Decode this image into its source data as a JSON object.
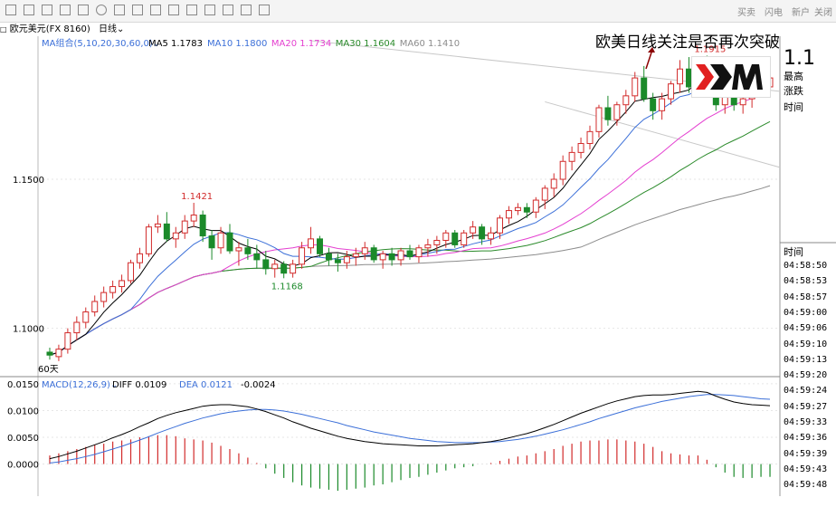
{
  "toolbar": {
    "right_items": [
      "买卖",
      "闪电",
      "新户",
      "关闭"
    ]
  },
  "symbol_bar": {
    "symbol": "欧元美元(FX 8160)",
    "period": "日线"
  },
  "headline": "欧美日线关注是否再次突破",
  "big_price": "1.1",
  "sidebar": {
    "high_label": "最高",
    "change_label": "涨跌",
    "time_label_1": "时间",
    "time_label_2": "时间",
    "times": [
      "04:58:50",
      "04:58:53",
      "04:58:57",
      "04:59:00",
      "04:59:06",
      "04:59:10",
      "04:59:13",
      "04:59:20",
      "04:59:24",
      "04:59:27",
      "04:59:33",
      "04:59:36",
      "04:59:39",
      "04:59:43",
      "04:59:48"
    ]
  },
  "colors": {
    "up": "#d22b2b",
    "down": "#1b8a2a",
    "ma5": "#000000",
    "ma10": "#3b6fd8",
    "ma20": "#e43fd0",
    "ma30": "#2a8a2a",
    "ma60": "#8c8c8c",
    "diff": "#000000",
    "dea": "#3b6fd8"
  },
  "chart_data": [
    {
      "type": "candlestick",
      "title": "",
      "indicator_label": "MA组合(5,10,20,30,60,0)",
      "ma_legend": [
        {
          "name": "MA5",
          "value": "1.1783"
        },
        {
          "name": "MA10",
          "value": "1.1800"
        },
        {
          "name": "MA20",
          "value": "1.1734"
        },
        {
          "name": "MA30",
          "value": "1.1604"
        },
        {
          "name": "MA60",
          "value": "1.1410"
        }
      ],
      "y_ticks": [
        1.15,
        1.1
      ],
      "y_tick_labels": [
        "1.1500",
        "1.1000"
      ],
      "ylim": [
        1.085,
        1.198
      ],
      "annotations": [
        {
          "text": "1.1421",
          "index": 16,
          "value": 1.1421,
          "kind": "high"
        },
        {
          "text": "1.1168",
          "index": 26,
          "value": 1.1168,
          "kind": "low"
        },
        {
          "text": "1.1915",
          "index": 73,
          "value": 1.1915,
          "kind": "high"
        }
      ],
      "bottom_label": "60天",
      "candles": [
        {
          "o": 1.092,
          "h": 1.0935,
          "l": 1.0895,
          "c": 1.091
        },
        {
          "o": 1.0905,
          "h": 1.0945,
          "l": 1.089,
          "c": 1.093
        },
        {
          "o": 1.093,
          "h": 1.1,
          "l": 1.0915,
          "c": 1.0985
        },
        {
          "o": 1.0985,
          "h": 1.104,
          "l": 1.096,
          "c": 1.102
        },
        {
          "o": 1.102,
          "h": 1.107,
          "l": 1.1,
          "c": 1.1055
        },
        {
          "o": 1.1055,
          "h": 1.111,
          "l": 1.104,
          "c": 1.109
        },
        {
          "o": 1.109,
          "h": 1.114,
          "l": 1.107,
          "c": 1.112
        },
        {
          "o": 1.112,
          "h": 1.116,
          "l": 1.11,
          "c": 1.114
        },
        {
          "o": 1.114,
          "h": 1.118,
          "l": 1.112,
          "c": 1.116
        },
        {
          "o": 1.116,
          "h": 1.123,
          "l": 1.115,
          "c": 1.122
        },
        {
          "o": 1.122,
          "h": 1.127,
          "l": 1.12,
          "c": 1.125
        },
        {
          "o": 1.125,
          "h": 1.135,
          "l": 1.124,
          "c": 1.134
        },
        {
          "o": 1.134,
          "h": 1.138,
          "l": 1.132,
          "c": 1.135
        },
        {
          "o": 1.135,
          "h": 1.139,
          "l": 1.129,
          "c": 1.13
        },
        {
          "o": 1.13,
          "h": 1.134,
          "l": 1.127,
          "c": 1.132
        },
        {
          "o": 1.132,
          "h": 1.138,
          "l": 1.13,
          "c": 1.136
        },
        {
          "o": 1.136,
          "h": 1.1421,
          "l": 1.134,
          "c": 1.138
        },
        {
          "o": 1.138,
          "h": 1.1395,
          "l": 1.129,
          "c": 1.131
        },
        {
          "o": 1.131,
          "h": 1.133,
          "l": 1.123,
          "c": 1.127
        },
        {
          "o": 1.127,
          "h": 1.134,
          "l": 1.125,
          "c": 1.132
        },
        {
          "o": 1.132,
          "h": 1.135,
          "l": 1.125,
          "c": 1.126
        },
        {
          "o": 1.126,
          "h": 1.129,
          "l": 1.121,
          "c": 1.127
        },
        {
          "o": 1.127,
          "h": 1.13,
          "l": 1.123,
          "c": 1.125
        },
        {
          "o": 1.125,
          "h": 1.128,
          "l": 1.12,
          "c": 1.123
        },
        {
          "o": 1.123,
          "h": 1.126,
          "l": 1.118,
          "c": 1.12
        },
        {
          "o": 1.12,
          "h": 1.123,
          "l": 1.117,
          "c": 1.1215
        },
        {
          "o": 1.1215,
          "h": 1.1225,
          "l": 1.1168,
          "c": 1.1185
        },
        {
          "o": 1.1185,
          "h": 1.123,
          "l": 1.117,
          "c": 1.1215
        },
        {
          "o": 1.1215,
          "h": 1.129,
          "l": 1.12,
          "c": 1.127
        },
        {
          "o": 1.127,
          "h": 1.134,
          "l": 1.125,
          "c": 1.13
        },
        {
          "o": 1.13,
          "h": 1.131,
          "l": 1.124,
          "c": 1.125
        },
        {
          "o": 1.125,
          "h": 1.127,
          "l": 1.121,
          "c": 1.123
        },
        {
          "o": 1.123,
          "h": 1.125,
          "l": 1.119,
          "c": 1.122
        },
        {
          "o": 1.122,
          "h": 1.126,
          "l": 1.12,
          "c": 1.124
        },
        {
          "o": 1.124,
          "h": 1.127,
          "l": 1.121,
          "c": 1.125
        },
        {
          "o": 1.125,
          "h": 1.129,
          "l": 1.123,
          "c": 1.127
        },
        {
          "o": 1.127,
          "h": 1.128,
          "l": 1.122,
          "c": 1.123
        },
        {
          "o": 1.123,
          "h": 1.126,
          "l": 1.12,
          "c": 1.125
        },
        {
          "o": 1.125,
          "h": 1.127,
          "l": 1.121,
          "c": 1.123
        },
        {
          "o": 1.123,
          "h": 1.127,
          "l": 1.121,
          "c": 1.126
        },
        {
          "o": 1.126,
          "h": 1.128,
          "l": 1.123,
          "c": 1.124
        },
        {
          "o": 1.124,
          "h": 1.128,
          "l": 1.122,
          "c": 1.127
        },
        {
          "o": 1.127,
          "h": 1.13,
          "l": 1.124,
          "c": 1.128
        },
        {
          "o": 1.128,
          "h": 1.131,
          "l": 1.125,
          "c": 1.1295
        },
        {
          "o": 1.1295,
          "h": 1.133,
          "l": 1.127,
          "c": 1.132
        },
        {
          "o": 1.132,
          "h": 1.133,
          "l": 1.127,
          "c": 1.128
        },
        {
          "o": 1.128,
          "h": 1.133,
          "l": 1.127,
          "c": 1.132
        },
        {
          "o": 1.132,
          "h": 1.136,
          "l": 1.13,
          "c": 1.134
        },
        {
          "o": 1.134,
          "h": 1.135,
          "l": 1.128,
          "c": 1.13
        },
        {
          "o": 1.13,
          "h": 1.134,
          "l": 1.128,
          "c": 1.132
        },
        {
          "o": 1.132,
          "h": 1.138,
          "l": 1.13,
          "c": 1.137
        },
        {
          "o": 1.137,
          "h": 1.141,
          "l": 1.135,
          "c": 1.1395
        },
        {
          "o": 1.1395,
          "h": 1.142,
          "l": 1.138,
          "c": 1.1405
        },
        {
          "o": 1.1405,
          "h": 1.142,
          "l": 1.137,
          "c": 1.139
        },
        {
          "o": 1.139,
          "h": 1.144,
          "l": 1.137,
          "c": 1.143
        },
        {
          "o": 1.143,
          "h": 1.148,
          "l": 1.14,
          "c": 1.147
        },
        {
          "o": 1.147,
          "h": 1.152,
          "l": 1.144,
          "c": 1.15
        },
        {
          "o": 1.15,
          "h": 1.158,
          "l": 1.148,
          "c": 1.156
        },
        {
          "o": 1.156,
          "h": 1.161,
          "l": 1.153,
          "c": 1.159
        },
        {
          "o": 1.159,
          "h": 1.164,
          "l": 1.157,
          "c": 1.162
        },
        {
          "o": 1.162,
          "h": 1.168,
          "l": 1.16,
          "c": 1.166
        },
        {
          "o": 1.166,
          "h": 1.175,
          "l": 1.164,
          "c": 1.174
        },
        {
          "o": 1.174,
          "h": 1.178,
          "l": 1.168,
          "c": 1.17
        },
        {
          "o": 1.17,
          "h": 1.176,
          "l": 1.168,
          "c": 1.175
        },
        {
          "o": 1.175,
          "h": 1.18,
          "l": 1.172,
          "c": 1.178
        },
        {
          "o": 1.178,
          "h": 1.186,
          "l": 1.176,
          "c": 1.184
        },
        {
          "o": 1.184,
          "h": 1.188,
          "l": 1.176,
          "c": 1.177
        },
        {
          "o": 1.177,
          "h": 1.179,
          "l": 1.17,
          "c": 1.173
        },
        {
          "o": 1.173,
          "h": 1.179,
          "l": 1.17,
          "c": 1.177
        },
        {
          "o": 1.177,
          "h": 1.183,
          "l": 1.175,
          "c": 1.182
        },
        {
          "o": 1.182,
          "h": 1.19,
          "l": 1.179,
          "c": 1.187
        },
        {
          "o": 1.187,
          "h": 1.191,
          "l": 1.179,
          "c": 1.181
        },
        {
          "o": 1.181,
          "h": 1.188,
          "l": 1.179,
          "c": 1.186
        },
        {
          "o": 1.186,
          "h": 1.1915,
          "l": 1.18,
          "c": 1.182
        },
        {
          "o": 1.182,
          "h": 1.184,
          "l": 1.173,
          "c": 1.175
        },
        {
          "o": 1.175,
          "h": 1.183,
          "l": 1.172,
          "c": 1.181
        },
        {
          "o": 1.181,
          "h": 1.182,
          "l": 1.173,
          "c": 1.175
        },
        {
          "o": 1.175,
          "h": 1.179,
          "l": 1.172,
          "c": 1.177
        },
        {
          "o": 1.177,
          "h": 1.181,
          "l": 1.174,
          "c": 1.18
        },
        {
          "o": 1.18,
          "h": 1.184,
          "l": 1.178,
          "c": 1.181
        },
        {
          "o": 1.181,
          "h": 1.185,
          "l": 1.179,
          "c": 1.184
        }
      ]
    },
    {
      "type": "line",
      "title": "",
      "indicator_label": "MACD(12,26,9)",
      "legend": [
        {
          "name": "DIFF",
          "value": "0.0109"
        },
        {
          "name": "DEA",
          "value": "0.0121"
        },
        {
          "name": "",
          "value": "-0.0024"
        }
      ],
      "y_ticks": [
        0.015,
        0.01,
        0.005,
        0.0
      ],
      "y_tick_labels": [
        "0.0150",
        "0.0100",
        "0.0050",
        "0.0000"
      ],
      "ylim": [
        -0.006,
        0.016
      ],
      "diff": [
        0.001,
        0.0014,
        0.0019,
        0.0024,
        0.003,
        0.0036,
        0.0042,
        0.0049,
        0.0055,
        0.0062,
        0.007,
        0.0077,
        0.0085,
        0.0091,
        0.0096,
        0.01,
        0.0104,
        0.0108,
        0.011,
        0.0111,
        0.0111,
        0.0109,
        0.0107,
        0.0103,
        0.0098,
        0.0092,
        0.0086,
        0.0079,
        0.0073,
        0.0067,
        0.0062,
        0.0057,
        0.0052,
        0.0048,
        0.0045,
        0.0042,
        0.004,
        0.0038,
        0.0037,
        0.0036,
        0.0035,
        0.0034,
        0.0034,
        0.0034,
        0.0035,
        0.0036,
        0.0037,
        0.0038,
        0.004,
        0.0042,
        0.0045,
        0.0049,
        0.0053,
        0.0057,
        0.0062,
        0.0068,
        0.0074,
        0.0081,
        0.0088,
        0.0095,
        0.0101,
        0.0107,
        0.0113,
        0.0118,
        0.0122,
        0.0126,
        0.0128,
        0.0129,
        0.0129,
        0.013,
        0.0132,
        0.0134,
        0.0136,
        0.0134,
        0.0127,
        0.0121,
        0.0116,
        0.0113,
        0.0111,
        0.011,
        0.0109
      ],
      "dea": [
        0.0002,
        0.0004,
        0.0007,
        0.001,
        0.0014,
        0.0018,
        0.0023,
        0.0028,
        0.0033,
        0.0039,
        0.0045,
        0.0051,
        0.0058,
        0.0064,
        0.007,
        0.0076,
        0.0081,
        0.0086,
        0.009,
        0.0094,
        0.0097,
        0.0099,
        0.0101,
        0.0102,
        0.0102,
        0.0101,
        0.0099,
        0.0096,
        0.0093,
        0.0089,
        0.0085,
        0.0081,
        0.0077,
        0.0072,
        0.0068,
        0.0064,
        0.006,
        0.0057,
        0.0054,
        0.0051,
        0.0048,
        0.0046,
        0.0044,
        0.0042,
        0.0041,
        0.004,
        0.004,
        0.004,
        0.004,
        0.0041,
        0.0042,
        0.0044,
        0.0046,
        0.0049,
        0.0052,
        0.0056,
        0.006,
        0.0064,
        0.0069,
        0.0074,
        0.0079,
        0.0085,
        0.009,
        0.0095,
        0.01,
        0.0105,
        0.0109,
        0.0113,
        0.0117,
        0.012,
        0.0123,
        0.0126,
        0.0128,
        0.013,
        0.013,
        0.0129,
        0.0128,
        0.0126,
        0.0124,
        0.0122,
        0.0121
      ],
      "hist": [
        0.0016,
        0.002,
        0.0024,
        0.0028,
        0.0032,
        0.0036,
        0.0038,
        0.0042,
        0.0044,
        0.0046,
        0.005,
        0.0052,
        0.0054,
        0.0054,
        0.0052,
        0.0048,
        0.0046,
        0.0044,
        0.004,
        0.0034,
        0.0028,
        0.002,
        0.0012,
        0.0002,
        -0.0008,
        -0.0018,
        -0.0026,
        -0.0034,
        -0.004,
        -0.0044,
        -0.0046,
        -0.0048,
        -0.005,
        -0.0048,
        -0.0046,
        -0.0044,
        -0.004,
        -0.0038,
        -0.0034,
        -0.003,
        -0.0026,
        -0.0024,
        -0.002,
        -0.0016,
        -0.0012,
        -0.0008,
        -0.0006,
        -0.0004,
        0.0,
        0.0002,
        0.0006,
        0.001,
        0.0014,
        0.0016,
        0.002,
        0.0024,
        0.0028,
        0.0034,
        0.0038,
        0.0042,
        0.0044,
        0.0044,
        0.0046,
        0.0046,
        0.0044,
        0.0042,
        0.0038,
        0.0032,
        0.0024,
        0.002,
        0.0018,
        0.0016,
        0.0016,
        0.0008,
        -0.0006,
        -0.0016,
        -0.0024,
        -0.0026,
        -0.0026,
        -0.0024,
        -0.0024
      ]
    }
  ]
}
